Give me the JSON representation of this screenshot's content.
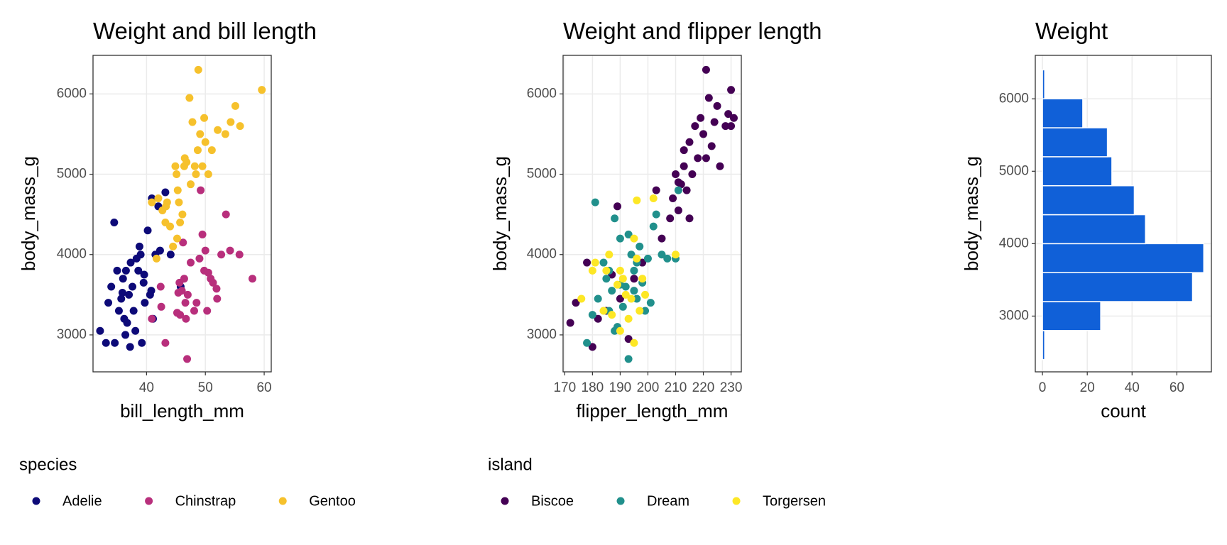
{
  "chart_data": [
    {
      "type": "scatter",
      "title": "Weight and bill length",
      "x_label": "bill_length_mm",
      "y_label": "body_mass_g",
      "legend_title": "species",
      "xlim": [
        30.9,
        61.2
      ],
      "xticks": [
        40,
        50,
        60
      ],
      "ylim": [
        2540,
        6480
      ],
      "yticks": [
        3000,
        4000,
        5000,
        6000
      ],
      "grid": true,
      "series": [
        {
          "name": "Adelie",
          "color": "#0d0a78",
          "x": [
            32.1,
            33.1,
            33.5,
            34.0,
            34.5,
            34.6,
            35.0,
            35.3,
            35.7,
            36.0,
            36.2,
            36.5,
            36.7,
            37.0,
            37.3,
            37.6,
            37.8,
            38.1,
            38.6,
            38.8,
            39.0,
            39.2,
            39.5,
            39.7,
            40.2,
            40.6,
            40.9,
            41.1,
            41.5,
            42.0,
            42.3,
            43.2,
            44.1,
            45.8,
            39.6,
            37.2,
            35.9,
            38.3,
            40.8,
            36.4
          ],
          "values": [
            3050,
            2900,
            3400,
            3600,
            4400,
            2900,
            3800,
            3300,
            3450,
            3700,
            3200,
            3800,
            3150,
            3500,
            3900,
            3600,
            3300,
            3050,
            3800,
            4100,
            4000,
            2900,
            3650,
            3400,
            4300,
            3500,
            4700,
            3200,
            4000,
            4600,
            4050,
            4775,
            4000,
            3600,
            3750,
            2850,
            3525,
            3950,
            3550,
            3000
          ]
        },
        {
          "name": "Chinstrap",
          "color": "#b82f7c",
          "x": [
            40.9,
            42.4,
            42.5,
            43.2,
            45.2,
            45.4,
            45.6,
            46.0,
            46.2,
            46.4,
            46.6,
            46.7,
            46.9,
            47.5,
            48.1,
            48.5,
            49.0,
            49.5,
            49.8,
            50.0,
            50.3,
            50.5,
            50.9,
            51.3,
            51.9,
            52.0,
            52.7,
            53.5,
            54.2,
            55.8,
            58.0,
            49.2,
            47.0,
            45.7
          ],
          "values": [
            3200,
            3600,
            3350,
            2900,
            3275,
            3525,
            3650,
            3550,
            4150,
            3700,
            3400,
            3200,
            2700,
            3900,
            3300,
            3400,
            3950,
            4250,
            3800,
            4050,
            3300,
            3775,
            3700,
            3650,
            3575,
            3450,
            4000,
            4500,
            4050,
            4000,
            3700,
            4800,
            3500,
            3250
          ]
        },
        {
          "name": "Gentoo",
          "color": "#f6c12c",
          "x": [
            40.9,
            41.7,
            42.0,
            42.7,
            43.2,
            43.3,
            43.5,
            44.0,
            44.5,
            44.9,
            45.1,
            45.2,
            45.5,
            45.7,
            46.1,
            46.4,
            46.8,
            47.3,
            47.5,
            47.8,
            48.2,
            48.4,
            48.7,
            49.1,
            49.5,
            49.8,
            50.0,
            50.5,
            51.1,
            52.1,
            53.4,
            54.3,
            55.1,
            55.9,
            59.6,
            48.8,
            45.3,
            46.5
          ],
          "values": [
            4650,
            3950,
            4700,
            4550,
            4400,
            4600,
            4650,
            4350,
            4100,
            5100,
            5000,
            4200,
            4650,
            4400,
            4500,
            5100,
            5150,
            5950,
            4875,
            5650,
            5100,
            5000,
            5300,
            5500,
            5100,
            5700,
            5400,
            5000,
            5300,
            5550,
            5500,
            5650,
            5850,
            5600,
            6050,
            6300,
            4800,
            5200
          ]
        }
      ]
    },
    {
      "type": "scatter",
      "title": "Weight and flipper length",
      "x_label": "flipper_length_mm",
      "y_label": "body_mass_g",
      "legend_title": "island",
      "xlim": [
        169.4,
        233.7
      ],
      "xticks": [
        170,
        180,
        190,
        200,
        210,
        220,
        230
      ],
      "ylim": [
        2540,
        6480
      ],
      "yticks": [
        3000,
        4000,
        5000,
        6000
      ],
      "grid": true,
      "series": [
        {
          "name": "Biscoe",
          "color": "#440154",
          "x": [
            172,
            174,
            178,
            180,
            182,
            185,
            187,
            189,
            190,
            193,
            195,
            198,
            203,
            205,
            208,
            209,
            210,
            211,
            212,
            213,
            214,
            215,
            216,
            217,
            218,
            219,
            220,
            221,
            222,
            223,
            224,
            225,
            226,
            228,
            229,
            230,
            230,
            231,
            221,
            215,
            211,
            213
          ],
          "values": [
            3150,
            3400,
            3900,
            2850,
            3200,
            3300,
            3750,
            4600,
            3450,
            2950,
            3700,
            3900,
            4800,
            4200,
            4450,
            4700,
            5000,
            4550,
            4875,
            5300,
            4800,
            5400,
            5000,
            5600,
            5200,
            5700,
            5500,
            6300,
            5950,
            5350,
            5650,
            5850,
            5100,
            5600,
            5750,
            5600,
            6050,
            5700,
            5200,
            4450,
            4900,
            5100
          ]
        },
        {
          "name": "Dream",
          "color": "#21908c",
          "x": [
            178,
            180,
            181,
            182,
            184,
            185,
            186,
            187,
            188,
            189,
            190,
            191,
            192,
            193,
            194,
            195,
            196,
            196,
            197,
            198,
            199,
            200,
            201,
            202,
            203,
            205,
            207,
            210,
            211,
            186,
            190,
            193,
            195,
            188
          ],
          "values": [
            2900,
            3250,
            4650,
            3450,
            3900,
            3700,
            3300,
            3550,
            4450,
            3100,
            4200,
            3350,
            3600,
            2700,
            4000,
            3800,
            3450,
            3900,
            4100,
            3650,
            3300,
            3950,
            3400,
            4350,
            4500,
            4000,
            3950,
            3950,
            4800,
            3800,
            3625,
            4250,
            3550,
            3050
          ]
        },
        {
          "name": "Torgersen",
          "color": "#fde725",
          "x": [
            176,
            180,
            181,
            184,
            185,
            186,
            187,
            189,
            190,
            190,
            191,
            192,
            193,
            194,
            195,
            196,
            197,
            198,
            199,
            202,
            196,
            195,
            210
          ],
          "values": [
            3450,
            3800,
            3900,
            3300,
            3800,
            4000,
            3250,
            3625,
            3800,
            3050,
            3700,
            3500,
            3200,
            3450,
            4200,
            4675,
            3300,
            3700,
            3500,
            4700,
            3950,
            2900,
            4000
          ]
        }
      ]
    },
    {
      "type": "histogram",
      "orientation": "horizontal",
      "title": "Weight",
      "x_label": "count",
      "y_label": "body_mass_g",
      "color": "#1060d8",
      "xlim": [
        -3.2,
        75.4
      ],
      "xticks": [
        0,
        20,
        40,
        60
      ],
      "ylim": [
        2230,
        6600
      ],
      "yticks": [
        3000,
        4000,
        5000,
        6000
      ],
      "grid": true,
      "bins": [
        2400,
        2800,
        3200,
        3600,
        4000,
        4400,
        4800,
        5200,
        5600,
        6000,
        6400
      ],
      "values": [
        1,
        26,
        67,
        72,
        46,
        41,
        31,
        29,
        18,
        1
      ]
    }
  ]
}
